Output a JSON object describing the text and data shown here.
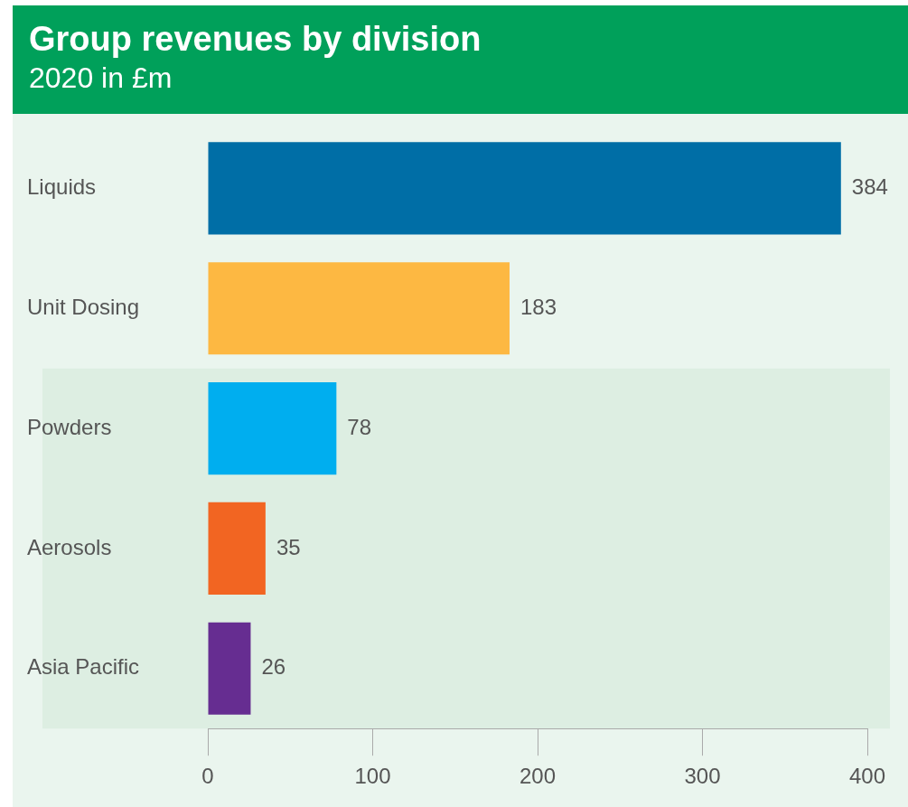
{
  "chart_data": {
    "type": "bar",
    "orientation": "horizontal",
    "title": "Group revenues by division",
    "subtitle": "2020 in £m",
    "categories": [
      "Liquids",
      "Unit Dosing",
      "Powders",
      "Aerosols",
      "Asia Pacific"
    ],
    "values": [
      384,
      183,
      78,
      35,
      26
    ],
    "colors": [
      "#006ea6",
      "#fdb842",
      "#00aeef",
      "#f26522",
      "#662d91"
    ],
    "xlim": [
      0,
      400
    ],
    "xticks": [
      0,
      100,
      200,
      300,
      400
    ],
    "grid": false,
    "legend": false,
    "data_labels": true,
    "bands": [
      {
        "axis": "y",
        "from": "Powders",
        "to": "Asia Pacific",
        "color": "#ddeee2"
      }
    ]
  }
}
